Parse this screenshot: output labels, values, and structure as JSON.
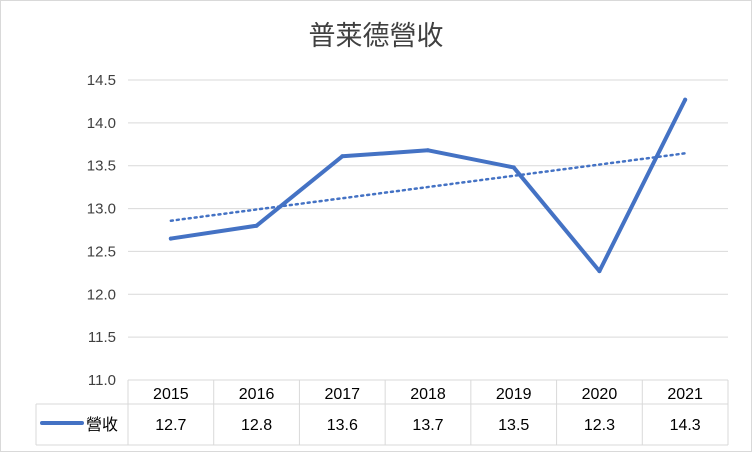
{
  "chart_data": {
    "type": "line",
    "title": "普莱德營收",
    "categories": [
      "2015",
      "2016",
      "2017",
      "2018",
      "2019",
      "2020",
      "2021"
    ],
    "series": [
      {
        "name": "營收",
        "values": [
          12.65,
          12.8,
          13.61,
          13.68,
          13.48,
          12.27,
          14.27
        ],
        "table_labels": [
          "12.7",
          "12.8",
          "13.6",
          "13.7",
          "13.5",
          "12.3",
          "14.3"
        ],
        "color": "#4472c4"
      }
    ],
    "trendline": {
      "type": "linear",
      "style": "dotted",
      "color": "#4472c4"
    },
    "y_ticks": [
      "11.0",
      "11.5",
      "12.0",
      "12.5",
      "13.0",
      "13.5",
      "14.0",
      "14.5"
    ],
    "ylim": [
      11.0,
      14.5
    ],
    "grid": true,
    "data_table": true,
    "legend_placement": "data-table"
  }
}
